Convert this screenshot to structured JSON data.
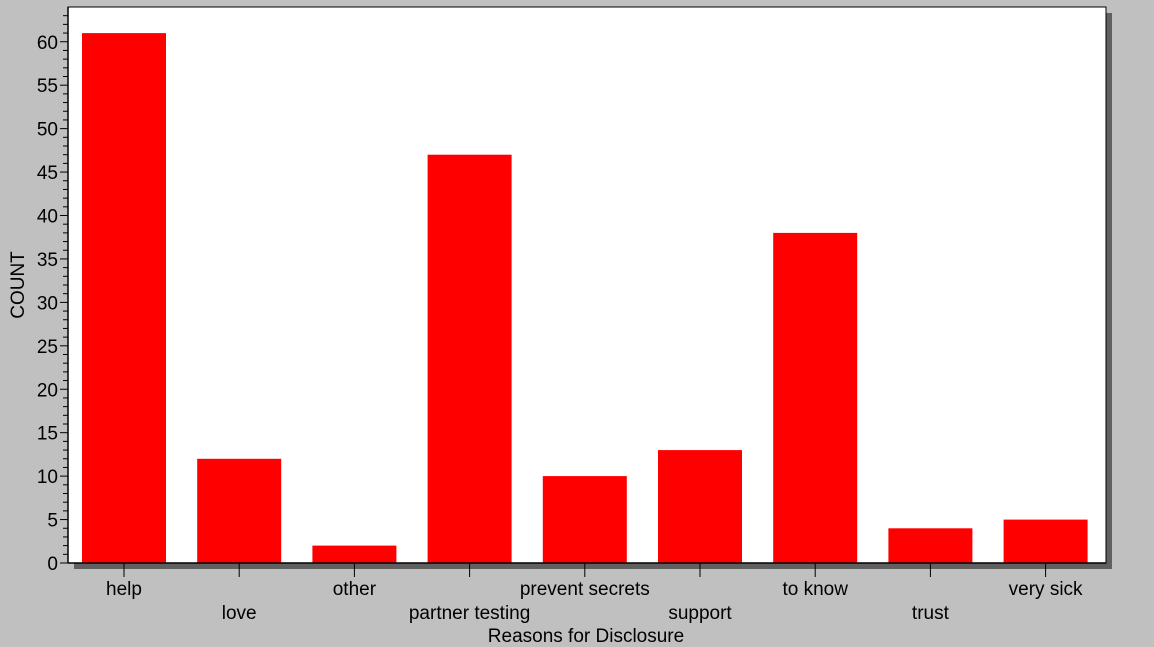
{
  "colors": {
    "bar": "#ff0000",
    "frame_background": "#c0c0c0",
    "plot_background": "#ffffff",
    "shadow": "#606060",
    "axis": "#000000"
  },
  "chart_data": {
    "type": "bar",
    "title": "",
    "xlabel": "Reasons for Disclosure",
    "ylabel": "COUNT",
    "categories": [
      "help",
      "love",
      "other",
      "partner testing",
      "prevent secrets",
      "support",
      "to know",
      "trust",
      "very sick"
    ],
    "values": [
      61,
      12,
      2,
      47,
      10,
      13,
      38,
      4,
      5
    ],
    "ylim": [
      0,
      64
    ],
    "yticks": [
      0,
      5,
      10,
      15,
      20,
      25,
      30,
      35,
      40,
      45,
      50,
      55,
      60
    ],
    "y_minor_step": 1,
    "label_rows": "alternating",
    "grid": false,
    "legend": "none"
  }
}
